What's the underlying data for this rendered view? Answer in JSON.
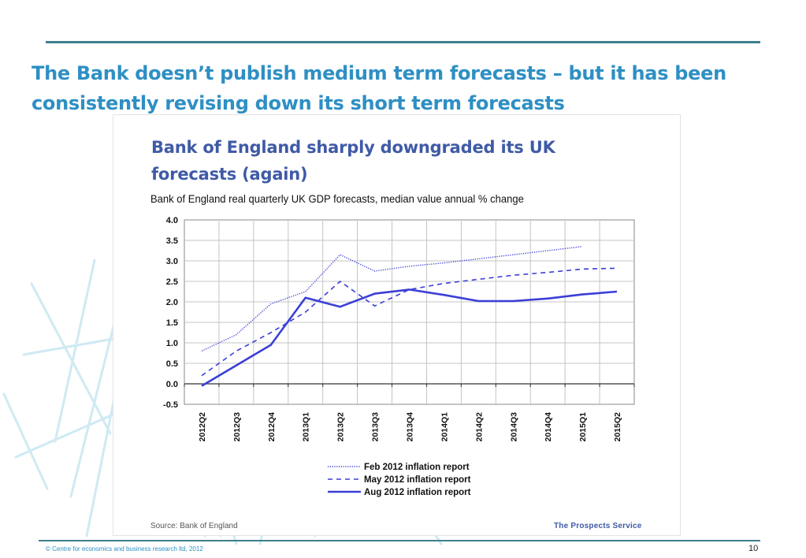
{
  "slide": {
    "title": "The Bank doesn’t publish medium term forecasts – but it has been consistently revising down its short term forecasts",
    "footer": "© Centre for economics and business research ltd, 2012",
    "page_number": "10"
  },
  "panel": {
    "headline": "Bank of England sharply downgraded its UK forecasts (again)",
    "source": "Source: Bank of England",
    "brand": "The Prospects  Service"
  },
  "colors": {
    "title": "#2e8fc4",
    "rule": "#3f7f8f",
    "series": "#3b3fd6",
    "headline": "#3f5aa6"
  },
  "chart_data": {
    "type": "line",
    "title": "Bank of England real quarterly UK GDP forecasts,  median value annual  % change",
    "xlabel": "",
    "ylabel": "",
    "ylim": [
      -0.5,
      4.0
    ],
    "yticks": [
      4.0,
      3.5,
      3.0,
      2.5,
      2.0,
      1.5,
      1.0,
      0.5,
      0.0,
      -0.5
    ],
    "ytick_labels": [
      "4.0",
      "3.5",
      "3.0",
      "2.5",
      "2.0",
      "1.5",
      "1.0",
      "0.5",
      "0.0",
      "-0.5"
    ],
    "categories": [
      "2012Q2",
      "2012Q3",
      "2012Q4",
      "2013Q1",
      "2013Q2",
      "2013Q3",
      "2013Q4",
      "2014Q1",
      "2014Q2",
      "2014Q3",
      "2014Q4",
      "2015Q1",
      "2015Q2"
    ],
    "grid": true,
    "legend_position": "bottom-center",
    "series": [
      {
        "name": "Feb 2012 inflation report",
        "style": "dotted",
        "values": [
          0.8,
          1.2,
          1.95,
          2.25,
          3.15,
          2.75,
          2.87,
          2.95,
          3.05,
          3.15,
          3.25,
          3.35,
          null
        ]
      },
      {
        "name": "May 2012 inflation report",
        "style": "dashed",
        "values": [
          0.2,
          0.8,
          1.25,
          1.75,
          2.5,
          1.9,
          2.3,
          2.45,
          2.55,
          2.65,
          2.72,
          2.8,
          2.82
        ]
      },
      {
        "name": "Aug 2012 inflation report",
        "style": "solid",
        "values": [
          -0.05,
          0.45,
          0.95,
          2.1,
          1.88,
          2.2,
          2.3,
          2.17,
          2.02,
          2.02,
          2.08,
          2.18,
          2.25
        ]
      }
    ]
  }
}
